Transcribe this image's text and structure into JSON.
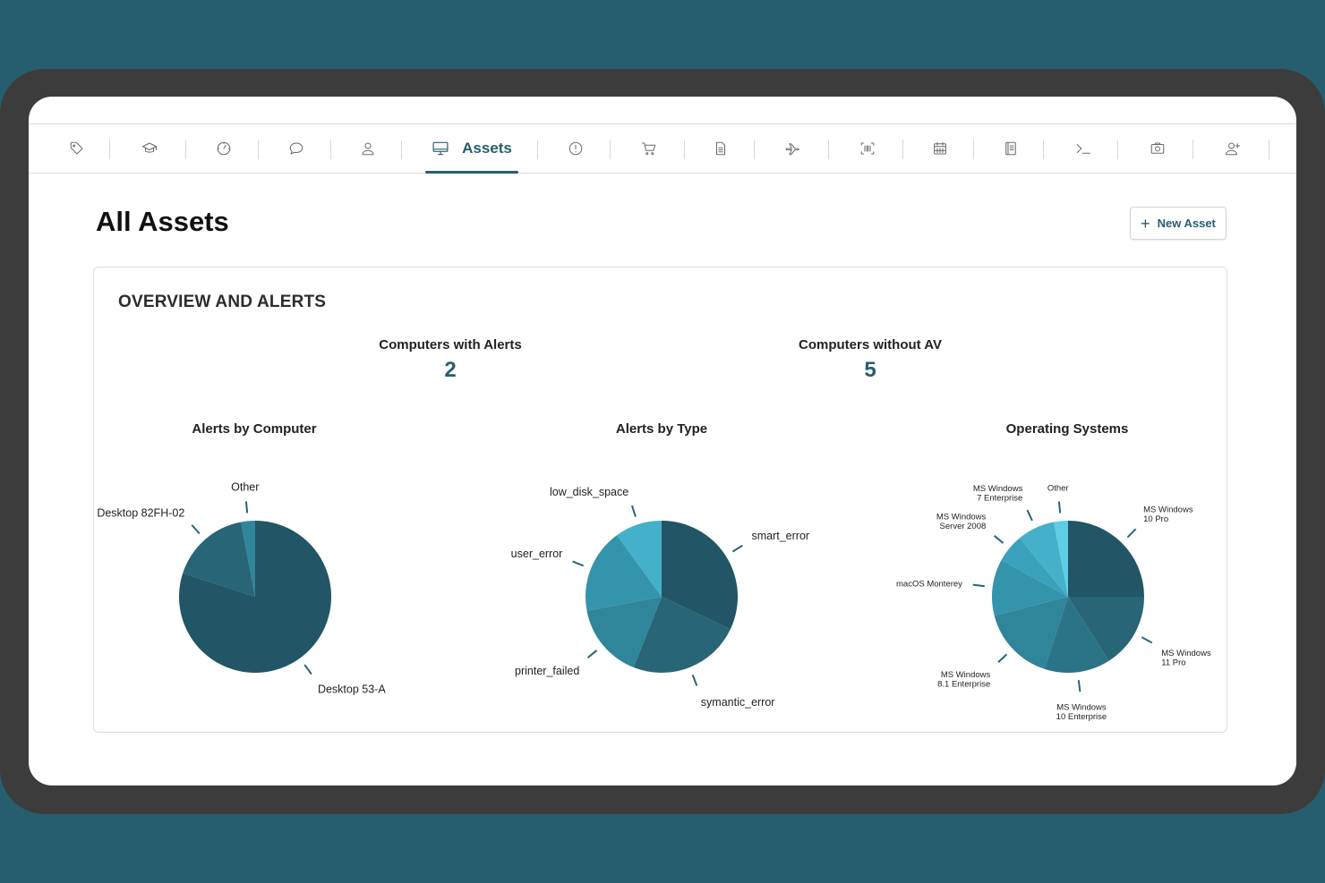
{
  "nav": {
    "items": [
      {
        "icon": "tag-icon",
        "label": ""
      },
      {
        "icon": "graduation-cap-icon",
        "label": ""
      },
      {
        "icon": "dashboard-dial-icon",
        "label": ""
      },
      {
        "icon": "chat-bubble-icon",
        "label": ""
      },
      {
        "icon": "user-icon",
        "label": ""
      },
      {
        "icon": "monitor-icon",
        "label": "Assets",
        "active": true
      },
      {
        "icon": "alert-circle-icon",
        "label": ""
      },
      {
        "icon": "shopping-cart-icon",
        "label": ""
      },
      {
        "icon": "document-icon",
        "label": ""
      },
      {
        "icon": "airplane-icon",
        "label": ""
      },
      {
        "icon": "barcode-scan-icon",
        "label": ""
      },
      {
        "icon": "calendar-icon",
        "label": ""
      },
      {
        "icon": "notebook-icon",
        "label": ""
      },
      {
        "icon": "terminal-icon",
        "label": ""
      },
      {
        "icon": "camera-icon",
        "label": ""
      },
      {
        "icon": "add-user-icon",
        "label": ""
      }
    ]
  },
  "page": {
    "title": "All Assets",
    "new_asset_label": "New Asset"
  },
  "overview": {
    "title": "OVERVIEW AND ALERTS",
    "stats": [
      {
        "label": "Computers with Alerts",
        "value": "2"
      },
      {
        "label": "Computers without AV",
        "value": "5"
      }
    ]
  },
  "colors": {
    "accent": "#275e6f",
    "pie_shades": [
      "#225566",
      "#276577",
      "#2b7487",
      "#2f8599",
      "#3494ab",
      "#3aa1bb",
      "#45b0ca",
      "#5fcde8"
    ]
  },
  "chart_data": [
    {
      "type": "pie",
      "title": "Alerts by Computer",
      "categories": [
        "Desktop 53-A",
        "Desktop 82FH-02",
        "Other"
      ],
      "values": [
        80,
        17,
        3
      ]
    },
    {
      "type": "pie",
      "title": "Alerts by Type",
      "categories": [
        "smart_error",
        "symantic_error",
        "printer_failed",
        "user_error",
        "low_disk_space"
      ],
      "values": [
        32,
        24,
        16,
        18,
        10
      ]
    },
    {
      "type": "pie",
      "title": "Operating Systems",
      "categories": [
        "MS Windows 10 Pro",
        "MS Windows 11 Pro",
        "MS Windows 10 Enterprise",
        "MS Windows 8.1 Enterprise",
        "macOS Monterey",
        "MS Windows Server 2008",
        "MS Windows 7 Enterprise",
        "Other"
      ],
      "values": [
        25,
        16,
        14,
        16,
        12,
        6,
        8,
        3
      ]
    }
  ]
}
